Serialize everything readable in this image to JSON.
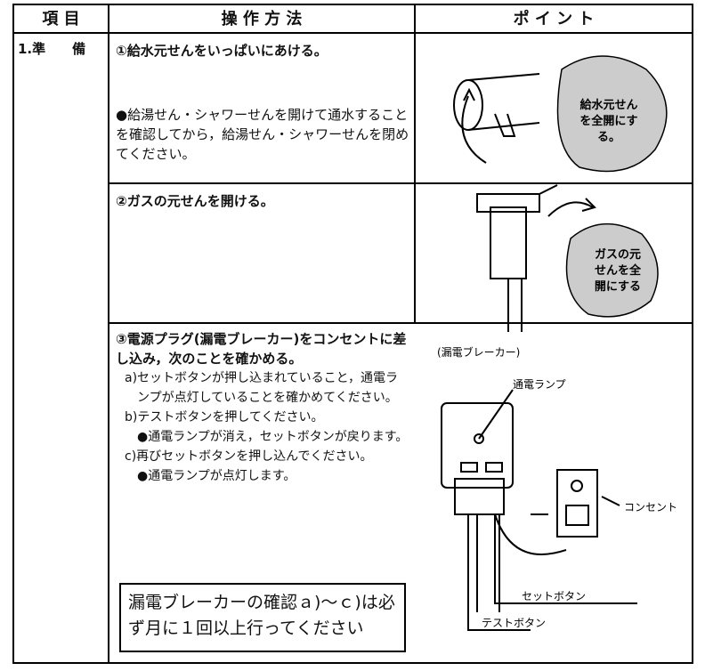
{
  "header": {
    "item": "項 目",
    "method": "操 作 方 法",
    "point": "ポ イ ン ト"
  },
  "item": "1.準　　備",
  "steps": [
    {
      "title": "①給水元せんをいっぱいにあける。",
      "note": "●給湯せん・シャワーせんを開けて通水することを確認してから，給湯せん・シャワーせんを閉めてください。",
      "bubble": [
        "給水元せん",
        "を全開にす",
        "る。"
      ]
    },
    {
      "title": "②ガスの元せんを開ける。",
      "bubble": [
        "ガスの元",
        "せんを全",
        "開にする"
      ]
    },
    {
      "title": "③電源プラグ(漏電ブレーカー)をコンセントに差し込み，次のことを確かめる。",
      "list": [
        "a)セットボタンが押し込まれていること，通電ランプが点灯していることを確かめてください。",
        "b)テストボタンを押してください。",
        "●通電ランプが消え，セットボタンが戻ります。",
        "c)再びセットボタンを押し込んでください。",
        "●通電ランプが点灯します。"
      ],
      "box": "漏電ブレーカーの確認ａ)～ｃ)は必ず月に１回以上行ってください",
      "labels": {
        "caption": "(漏電ブレーカー)",
        "lamp": "通電ランプ",
        "outlet": "コンセント",
        "set": "セットボタン",
        "test": "テストボタン"
      }
    }
  ]
}
